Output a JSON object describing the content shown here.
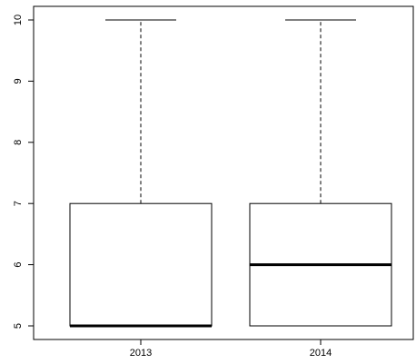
{
  "chart_data": {
    "type": "boxplot",
    "title": "",
    "xlabel": "",
    "ylabel": "",
    "ylim": [
      5,
      10
    ],
    "y_ticks": [
      "5",
      "6",
      "7",
      "8",
      "9",
      "10"
    ],
    "categories": [
      "2013",
      "2014"
    ],
    "boxes": [
      {
        "category": "2013",
        "min": 5,
        "q1": 5,
        "median": 5,
        "q3": 7,
        "max": 10
      },
      {
        "category": "2014",
        "min": 5,
        "q1": 5,
        "median": 6,
        "q3": 7,
        "max": 10
      }
    ],
    "grid": false,
    "legend": "none"
  }
}
